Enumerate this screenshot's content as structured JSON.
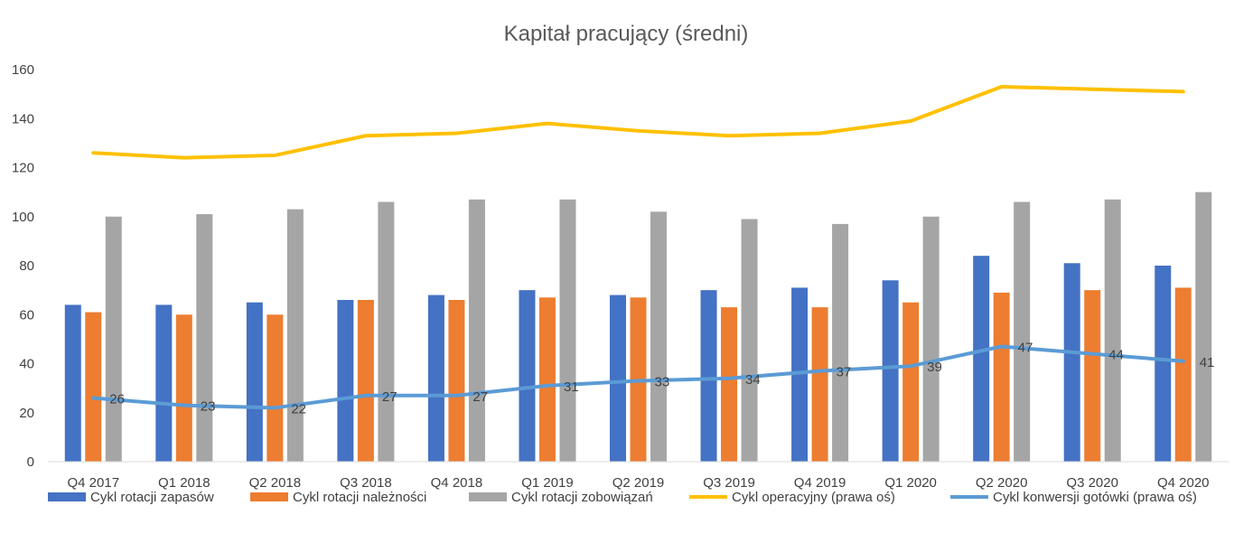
{
  "chart_data": {
    "type": "bar",
    "title": "Kapitał pracujący (średni)",
    "xlabel": "",
    "ylabel": "",
    "ylim": [
      0,
      160
    ],
    "yticks": [
      0,
      20,
      40,
      60,
      80,
      100,
      120,
      140,
      160
    ],
    "grid": false,
    "legend_position": "bottom",
    "categories": [
      "Q4 2017",
      "Q1 2018",
      "Q2 2018",
      "Q3 2018",
      "Q4 2018",
      "Q1 2019",
      "Q2 2019",
      "Q3 2019",
      "Q4 2019",
      "Q1 2020",
      "Q2 2020",
      "Q3 2020",
      "Q4 2020"
    ],
    "series": [
      {
        "name": "Cykl rotacji zapasów",
        "type": "bar",
        "color": "#4472C4",
        "values": [
          64,
          64,
          65,
          66,
          68,
          70,
          68,
          70,
          71,
          74,
          84,
          81,
          80
        ]
      },
      {
        "name": "Cykl rotacji należności",
        "type": "bar",
        "color": "#ED7D31",
        "values": [
          61,
          60,
          60,
          66,
          66,
          67,
          67,
          63,
          63,
          65,
          69,
          70,
          71
        ]
      },
      {
        "name": "Cykl rotacji zobowiązań",
        "type": "bar",
        "color": "#A5A5A5",
        "values": [
          100,
          101,
          103,
          106,
          107,
          107,
          102,
          99,
          97,
          100,
          106,
          107,
          110
        ]
      },
      {
        "name": "Cykl operacyjny (prawa oś)",
        "type": "line",
        "color": "#FFC000",
        "values": [
          126,
          124,
          125,
          133,
          134,
          138,
          135,
          133,
          134,
          139,
          153,
          152,
          151
        ]
      },
      {
        "name": "Cykl konwersji gotówki (prawa oś)",
        "type": "line",
        "color": "#5B9BD5",
        "values": [
          26,
          23,
          22,
          27,
          27,
          31,
          33,
          34,
          37,
          39,
          47,
          44,
          41
        ],
        "labels": [
          "26",
          "23",
          "22",
          "27",
          "27",
          "31",
          "33",
          "34",
          "37",
          "39",
          "47",
          "44",
          "41"
        ]
      }
    ]
  }
}
